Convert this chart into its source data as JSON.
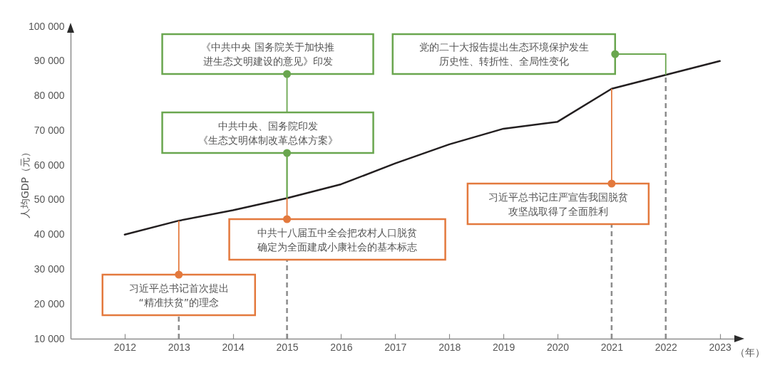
{
  "chart_data": {
    "type": "line",
    "xlabel": "（年）",
    "ylabel": "人均GDP（元）",
    "x": [
      2012,
      2013,
      2014,
      2015,
      2016,
      2017,
      2018,
      2019,
      2020,
      2021,
      2022,
      2023
    ],
    "xlim": [
      2011,
      2023.4
    ],
    "xticks": [
      2012,
      2013,
      2014,
      2015,
      2016,
      2017,
      2018,
      2019,
      2020,
      2021,
      2022,
      2023
    ],
    "ylim": [
      10000,
      100000
    ],
    "yticks": [
      {
        "value": 10000,
        "label": "10 000"
      },
      {
        "value": 20000,
        "label": "20 000"
      },
      {
        "value": 30000,
        "label": "30 000"
      },
      {
        "value": 40000,
        "label": "40 000"
      },
      {
        "value": 50000,
        "label": "50 000"
      },
      {
        "value": 60000,
        "label": "60 000"
      },
      {
        "value": 70000,
        "label": "70 000"
      },
      {
        "value": 80000,
        "label": "80 000"
      },
      {
        "value": 90000,
        "label": "90 000"
      },
      {
        "value": 100000,
        "label": "100 000"
      }
    ],
    "series": [
      {
        "color": "#231f20",
        "values": [
          40000,
          44000,
          47000,
          50500,
          54500,
          60500,
          66000,
          70500,
          72500,
          82000,
          86000,
          90000
        ]
      }
    ],
    "annotations": [
      {
        "text": "习近平总书记首次提出“精准扶贫”的理念",
        "x": 2013,
        "y": 44000
      },
      {
        "text": "《中共中央 国务院关于加快推进生态文明建设的意见》印发",
        "x": 2015,
        "y": 50500
      },
      {
        "text": "中共中央、国务院印发《生态文明体制改革总体方案》",
        "x": 2015,
        "y": 50500
      },
      {
        "text": "中共十八届五中全会把农村人口脱贫确定为全面建成小康社会的基本标志",
        "x": 2015,
        "y": 50500
      },
      {
        "text": "习近平总书记庄严宣告我国脱贫攻坚战取得了全面胜利",
        "x": 2021,
        "y": 82000
      },
      {
        "text": "党的二十大报告提出生态环境保护发生历史性、转折性、全局性变化",
        "x": 2022,
        "y": 86000
      }
    ]
  }
}
